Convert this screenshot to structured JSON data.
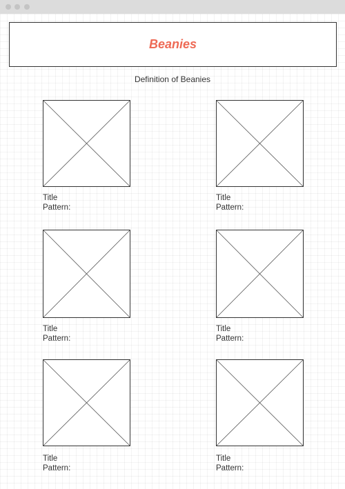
{
  "header": {
    "title": "Beanies",
    "subtitle": "Definition of Beanies"
  },
  "colors": {
    "accent": "#ee6a55",
    "border": "#333333"
  },
  "products": [
    {
      "title": "Title",
      "pattern_label": "Pattern:",
      "image_icon": "image-placeholder-icon"
    },
    {
      "title": "Title",
      "pattern_label": "Pattern:",
      "image_icon": "image-placeholder-icon"
    },
    {
      "title": "Title",
      "pattern_label": "Pattern:",
      "image_icon": "image-placeholder-icon"
    },
    {
      "title": "Title",
      "pattern_label": "Pattern:",
      "image_icon": "image-placeholder-icon"
    },
    {
      "title": "Title",
      "pattern_label": "Pattern:",
      "image_icon": "image-placeholder-icon"
    },
    {
      "title": "Title",
      "pattern_label": "Pattern:",
      "image_icon": "image-placeholder-icon"
    }
  ]
}
